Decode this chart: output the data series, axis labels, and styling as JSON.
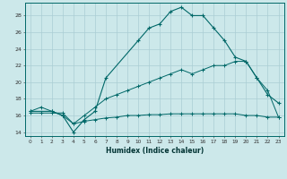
{
  "xlabel": "Humidex (Indice chaleur)",
  "bg_color": "#cce8ea",
  "grid_color": "#aacdd4",
  "line_color": "#006868",
  "xlim": [
    -0.5,
    23.5
  ],
  "ylim": [
    13.5,
    29.5
  ],
  "xticks": [
    0,
    1,
    2,
    3,
    4,
    5,
    6,
    7,
    8,
    9,
    10,
    11,
    12,
    13,
    14,
    15,
    16,
    17,
    18,
    19,
    20,
    21,
    22,
    23
  ],
  "yticks": [
    14,
    16,
    18,
    20,
    22,
    24,
    26,
    28
  ],
  "series1_x": [
    0,
    1,
    2,
    3,
    4,
    5,
    6,
    7,
    8,
    9,
    10,
    11,
    12,
    13,
    14,
    15,
    16,
    17,
    18,
    19,
    20,
    21,
    22,
    23
  ],
  "series1_y": [
    16.3,
    16.3,
    16.3,
    16.3,
    15.0,
    15.3,
    15.5,
    15.7,
    15.8,
    16.0,
    16.0,
    16.1,
    16.1,
    16.2,
    16.2,
    16.2,
    16.2,
    16.2,
    16.2,
    16.2,
    16.0,
    16.0,
    15.8,
    15.8
  ],
  "series2_x": [
    0,
    1,
    2,
    3,
    4,
    5,
    6,
    7,
    8,
    9,
    10,
    11,
    12,
    13,
    14,
    15,
    16,
    17,
    18,
    19,
    20,
    21,
    22,
    23
  ],
  "series2_y": [
    16.5,
    17.0,
    16.5,
    16.0,
    15.0,
    16.0,
    17.0,
    18.0,
    18.5,
    19.0,
    19.5,
    20.0,
    20.5,
    21.0,
    21.5,
    21.0,
    21.5,
    22.0,
    22.0,
    22.5,
    22.5,
    20.5,
    19.0,
    15.8
  ],
  "series3_x": [
    0,
    2,
    3,
    4,
    5,
    6,
    7,
    10,
    11,
    12,
    13,
    14,
    15,
    16,
    17,
    18,
    19,
    20,
    21,
    22,
    23
  ],
  "series3_y": [
    16.5,
    16.5,
    16.0,
    14.0,
    15.5,
    16.5,
    20.5,
    25.0,
    26.5,
    27.0,
    28.5,
    29.0,
    28.0,
    28.0,
    26.5,
    25.0,
    23.0,
    22.5,
    20.5,
    18.5,
    17.5
  ]
}
